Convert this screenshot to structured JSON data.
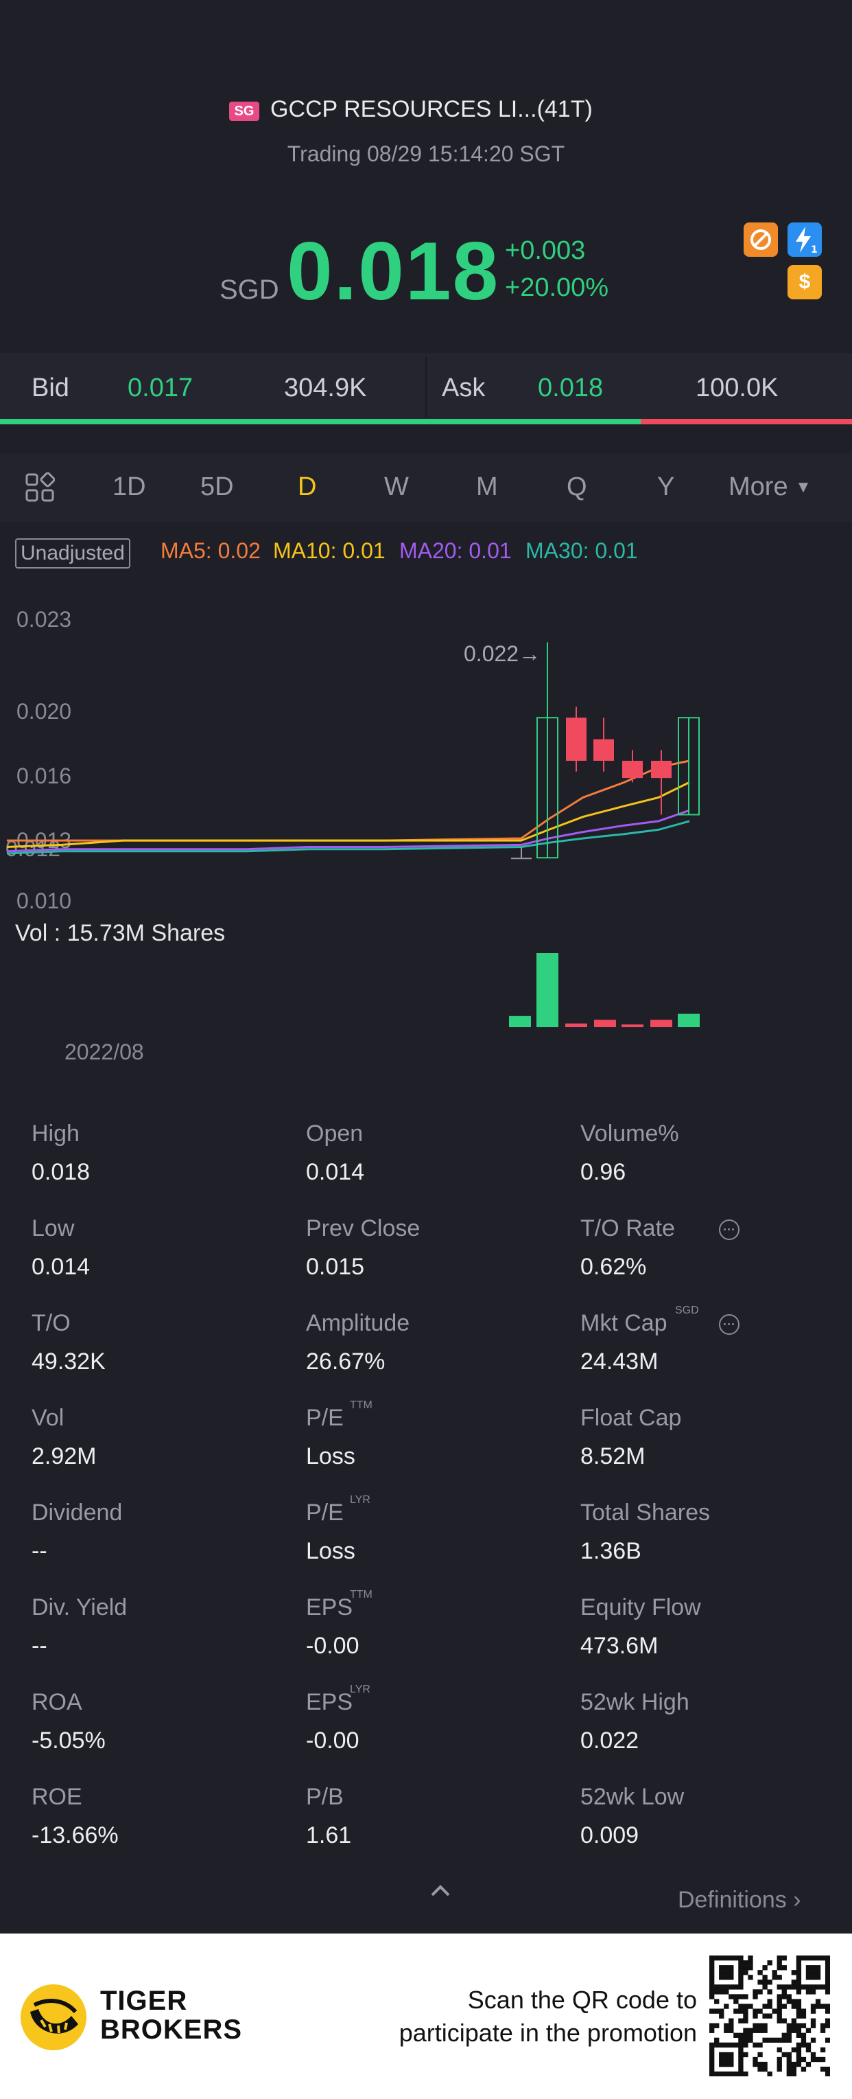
{
  "header": {
    "market_badge": "SG",
    "stock_name": "GCCP RESOURCES LI...(41T)",
    "trading_status": "Trading 08/29 15:14:20 SGT",
    "currency": "SGD",
    "price": "0.018",
    "change": "+0.003",
    "change_pct": "+20.00%",
    "icons": [
      "no-short-icon",
      "level1-icon",
      "dollar-icon"
    ],
    "dollar_glyph": "$"
  },
  "bid_ask": {
    "bid_label": "Bid",
    "bid_price": "0.017",
    "bid_size": "304.9K",
    "ask_label": "Ask",
    "ask_price": "0.018",
    "ask_size": "100.0K",
    "bid_share": 0.752
  },
  "tabs": [
    {
      "label": "1D"
    },
    {
      "label": "5D"
    },
    {
      "label": "D",
      "active": true
    },
    {
      "label": "W"
    },
    {
      "label": "M"
    },
    {
      "label": "Q"
    },
    {
      "label": "Y"
    },
    {
      "label": "More"
    }
  ],
  "chart": {
    "adjust_label": "Unadjusted",
    "ma": [
      {
        "label": "MA5: 0.02",
        "color": "#f47c3c"
      },
      {
        "label": "MA10: 0.01",
        "color": "#f5c518"
      },
      {
        "label": "MA20: 0.01",
        "color": "#a25cf0"
      },
      {
        "label": "MA30: 0.01",
        "color": "#2bb8a6"
      }
    ],
    "y_ticks": [
      "0.023",
      "0.020",
      "0.016",
      "0.013",
      "0.012",
      "0.010"
    ],
    "high_marker": "0.022",
    "volume_label": "Vol  : 15.73M Shares",
    "date_label": "2022/08"
  },
  "chart_data": {
    "type": "candlestick",
    "x_label": "2022/08",
    "ylim": [
      0.01,
      0.023
    ],
    "candles": [
      {
        "open": 0.012,
        "close": 0.012,
        "high": 0.0125,
        "low": 0.012,
        "dir": "flat"
      },
      {
        "open": 0.012,
        "close": 0.0185,
        "high": 0.022,
        "low": 0.012,
        "dir": "up"
      },
      {
        "open": 0.0185,
        "close": 0.0165,
        "high": 0.019,
        "low": 0.016,
        "dir": "down"
      },
      {
        "open": 0.0175,
        "close": 0.0165,
        "high": 0.0185,
        "low": 0.016,
        "dir": "down"
      },
      {
        "open": 0.0165,
        "close": 0.0157,
        "high": 0.017,
        "low": 0.0155,
        "dir": "down"
      },
      {
        "open": 0.0165,
        "close": 0.0157,
        "high": 0.017,
        "low": 0.014,
        "dir": "down"
      },
      {
        "open": 0.014,
        "close": 0.0185,
        "high": 0.0185,
        "low": 0.014,
        "dir": "up"
      }
    ],
    "volume": [
      0.15,
      1.0,
      0.05,
      0.1,
      0.02,
      0.1,
      0.18
    ],
    "volume_dir": [
      "up",
      "up",
      "down",
      "down",
      "down",
      "down",
      "up"
    ],
    "ma_lines": {
      "MA5": [
        0.0128,
        0.0128,
        0.0128,
        0.0128,
        0.0128,
        0.0128,
        0.0128,
        0.0129,
        0.0138,
        0.0148,
        0.0155,
        0.0162,
        0.0165
      ],
      "MA10": [
        0.0125,
        0.0126,
        0.0128,
        0.0128,
        0.0128,
        0.0128,
        0.0128,
        0.0128,
        0.0133,
        0.0139,
        0.0144,
        0.0148,
        0.0155
      ],
      "MA20": [
        0.0123,
        0.0124,
        0.0124,
        0.0124,
        0.0124,
        0.0125,
        0.0125,
        0.0126,
        0.0129,
        0.0132,
        0.0135,
        0.0137,
        0.0142
      ],
      "MA30": [
        0.0122,
        0.0123,
        0.0123,
        0.0123,
        0.0123,
        0.0124,
        0.0124,
        0.0125,
        0.0127,
        0.0129,
        0.0131,
        0.0133,
        0.0137
      ]
    }
  },
  "stats": [
    [
      {
        "label": "High",
        "value": "0.018"
      },
      {
        "label": "Open",
        "value": "0.014"
      },
      {
        "label": "Volume%",
        "value": "0.96"
      }
    ],
    [
      {
        "label": "Low",
        "value": "0.014"
      },
      {
        "label": "Prev Close",
        "value": "0.015"
      },
      {
        "label": "T/O Rate",
        "value": "0.62%",
        "info": true
      }
    ],
    [
      {
        "label": "T/O",
        "value": "49.32K"
      },
      {
        "label": "Amplitude",
        "value": "26.67%"
      },
      {
        "label": "Mkt Cap",
        "value": "24.43M",
        "sup": "SGD",
        "info": true
      }
    ],
    [
      {
        "label": "Vol",
        "value": "2.92M"
      },
      {
        "label": "P/E",
        "value": "Loss",
        "sup": "TTM"
      },
      {
        "label": "Float Cap",
        "value": "8.52M"
      }
    ],
    [
      {
        "label": "Dividend",
        "value": "--"
      },
      {
        "label": "P/E",
        "value": "Loss",
        "sup": "LYR"
      },
      {
        "label": "Total Shares",
        "value": "1.36B"
      }
    ],
    [
      {
        "label": "Div. Yield",
        "value": "--"
      },
      {
        "label": "EPS",
        "value": "-0.00",
        "sup": "TTM"
      },
      {
        "label": "Equity Flow",
        "value": "473.6M"
      }
    ],
    [
      {
        "label": "ROA",
        "value": "-5.05%"
      },
      {
        "label": "EPS",
        "value": "-0.00",
        "sup": "LYR"
      },
      {
        "label": "52wk High",
        "value": "0.022"
      }
    ],
    [
      {
        "label": "ROE",
        "value": "-13.66%"
      },
      {
        "label": "P/B",
        "value": "1.61"
      },
      {
        "label": "52wk Low",
        "value": "0.009"
      }
    ]
  ],
  "definitions_label": "Definitions",
  "footer": {
    "brand_line1": "TIGER",
    "brand_line2": "BROKERS",
    "promo_line1": "Scan the QR code to",
    "promo_line2": "participate in the promotion"
  },
  "colors": {
    "up": "#2fd07f",
    "down": "#f04a5e",
    "accent": "#f5c518",
    "background": "#1f1f27"
  }
}
